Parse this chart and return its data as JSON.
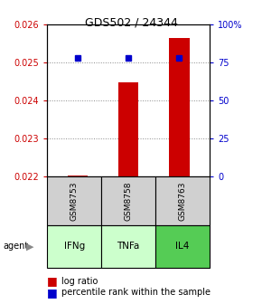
{
  "title": "GDS502 / 24344",
  "samples": [
    "GSM8753",
    "GSM8758",
    "GSM8763"
  ],
  "agents": [
    "IFNg",
    "TNFa",
    "IL4"
  ],
  "agent_colors": [
    "#ccffcc",
    "#ccffcc",
    "#55cc55"
  ],
  "bar_values": [
    0.02202,
    0.02448,
    0.02563
  ],
  "percentile_values": [
    78,
    78,
    78
  ],
  "ylim_left": [
    0.022,
    0.026
  ],
  "ylim_right": [
    0,
    100
  ],
  "yticks_left": [
    0.022,
    0.023,
    0.024,
    0.025,
    0.026
  ],
  "yticks_right": [
    0,
    25,
    50,
    75,
    100
  ],
  "bar_color": "#cc0000",
  "percentile_color": "#0000cc",
  "gsm_bg": "#d0d0d0",
  "bar_width": 0.4,
  "figsize": [
    2.9,
    3.36
  ],
  "dpi": 100
}
